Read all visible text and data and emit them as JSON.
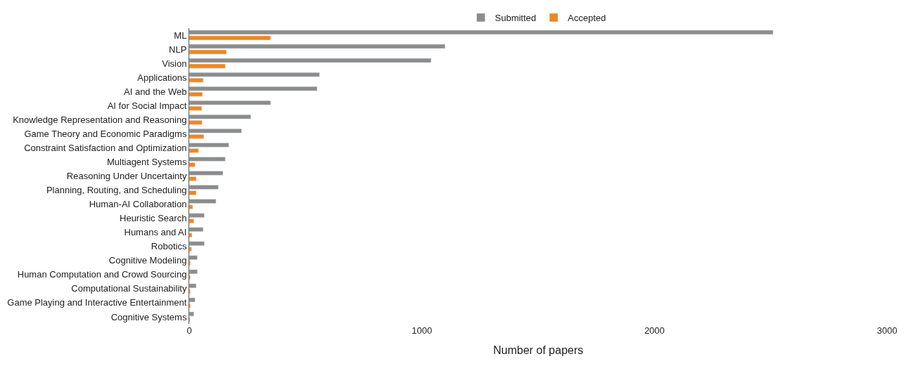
{
  "chart_data": {
    "type": "bar",
    "orientation": "horizontal",
    "xlabel": "Number of papers",
    "categories": [
      "ML",
      "NLP",
      "Vision",
      "Applications",
      "AI and the Web",
      "AI for Social Impact",
      "Knowledge Representation and Reasoning",
      "Game Theory and Economic Paradigms",
      "Constraint Satisfaction and Optimization",
      "Multiagent Systems",
      "Reasoning Under Uncertainty",
      "Planning, Routing, and Scheduling",
      "Human-AI Collaboration",
      "Heuristic Search",
      "Humans and AI",
      "Robotics",
      "Cognitive Modeling",
      "Human Computation and Crowd Sourcing",
      "Computational Sustainability",
      "Game Playing and Interactive Entertainment",
      "Cognitive Systems"
    ],
    "series": [
      {
        "name": "Submitted",
        "color": "#8c8c8c",
        "values": [
          2510,
          1100,
          1040,
          560,
          550,
          350,
          265,
          225,
          170,
          155,
          145,
          125,
          115,
          65,
          60,
          65,
          35,
          35,
          30,
          25,
          20
        ]
      },
      {
        "name": "Accepted",
        "color": "#f0861f",
        "values": [
          350,
          160,
          155,
          60,
          57,
          54,
          55,
          63,
          40,
          25,
          30,
          30,
          15,
          20,
          12,
          10,
          5,
          5,
          5,
          5,
          3
        ]
      }
    ],
    "xlim": [
      0,
      3000
    ],
    "xticks": [
      0,
      1000,
      2000,
      3000
    ],
    "legend": "top"
  }
}
